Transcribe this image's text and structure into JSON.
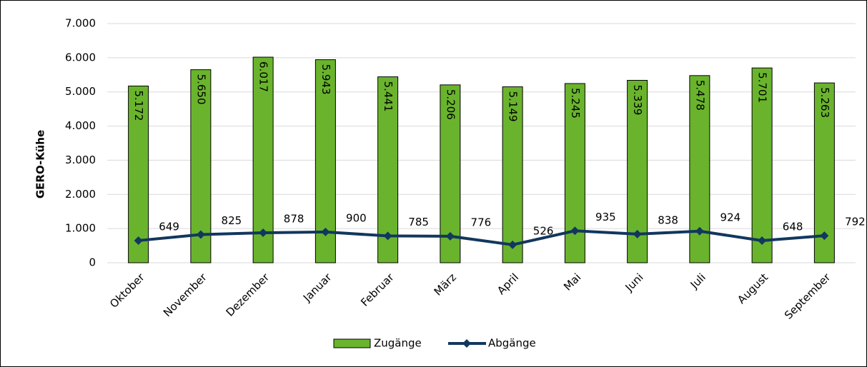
{
  "chart_data": {
    "type": "combo",
    "y_label": "GERO-Kühe",
    "categories": [
      "Oktober",
      "November",
      "Dezember",
      "Januar",
      "Februar",
      "März",
      "April",
      "Mai",
      "Juni",
      "Juli",
      "August",
      "September"
    ],
    "series": [
      {
        "name": "Zugänge",
        "type": "bar",
        "color": "#6ab42d",
        "values": [
          5172,
          5650,
          6017,
          5943,
          5441,
          5206,
          5149,
          5245,
          5339,
          5478,
          5701,
          5263
        ],
        "value_labels": [
          "5.172",
          "5.650",
          "6.017",
          "5.943",
          "5.441",
          "5.206",
          "5.149",
          "5.245",
          "5.339",
          "5.478",
          "5.701",
          "5.263"
        ]
      },
      {
        "name": "Abgänge",
        "type": "line",
        "color": "#12375e",
        "values": [
          649,
          825,
          878,
          900,
          785,
          776,
          526,
          935,
          838,
          924,
          648,
          792
        ]
      }
    ],
    "ylim": [
      0,
      7000
    ],
    "yticks": [
      0,
      {
        "value": 1000,
        "label": "1.000"
      },
      {
        "value": 2000,
        "label": "2.000"
      },
      {
        "value": 3000,
        "label": "3.000"
      },
      {
        "value": 4000,
        "label": "4.000"
      },
      {
        "value": 5000,
        "label": "5.000"
      },
      {
        "value": 6000,
        "label": "6.000"
      },
      {
        "value": 7000,
        "label": "7.000"
      }
    ],
    "grid": true
  }
}
